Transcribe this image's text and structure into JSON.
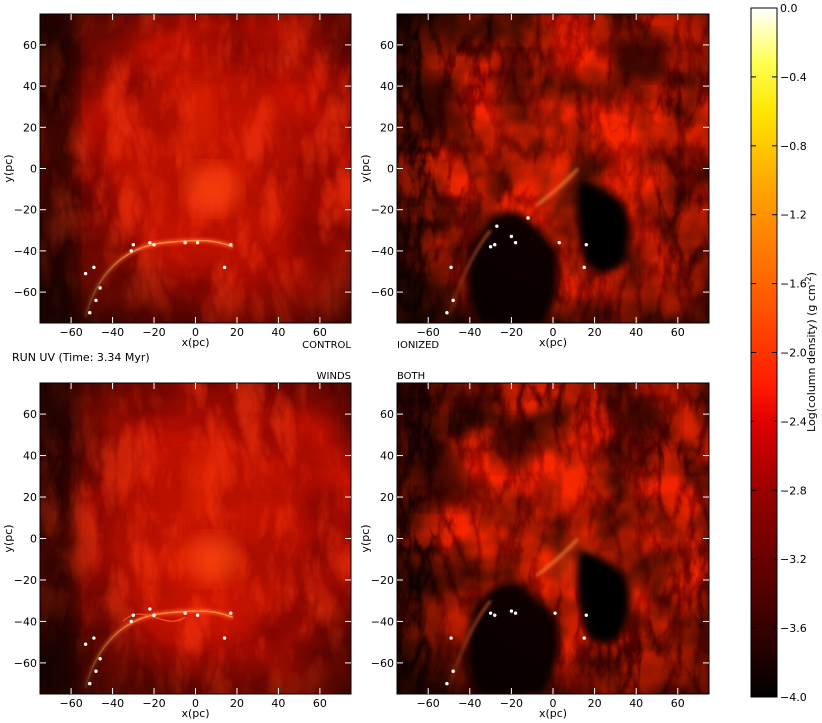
{
  "figure": {
    "run_label": "RUN UV (Time: 3.34 Myr)"
  },
  "chart_data": [
    {
      "type": "heatmap",
      "panel": "top-left",
      "label": "CONTROL",
      "xlabel": "x(pc)",
      "ylabel": "y(pc)",
      "xlim": [
        -75,
        75
      ],
      "ylim": [
        -75,
        75
      ],
      "xticks": [
        -60,
        -40,
        -20,
        0,
        20,
        40,
        60
      ],
      "yticks": [
        -60,
        -40,
        -20,
        0,
        20,
        40,
        60
      ],
      "structure": "smooth",
      "stars": [
        [
          -51,
          -70
        ],
        [
          -48,
          -64
        ],
        [
          -46,
          -58
        ],
        [
          -53,
          -51
        ],
        [
          -49,
          -48
        ],
        [
          -31,
          -40
        ],
        [
          -30,
          -37
        ],
        [
          -22,
          -36
        ],
        [
          -20,
          -37
        ],
        [
          -5,
          -36
        ],
        [
          1,
          -36
        ],
        [
          17,
          -37
        ],
        [
          14,
          -48
        ]
      ]
    },
    {
      "type": "heatmap",
      "panel": "top-right",
      "label": "IONIZED",
      "xlabel": "x(pc)",
      "ylabel": "y(pc)",
      "xlim": [
        -75,
        75
      ],
      "ylim": [
        -75,
        75
      ],
      "xticks": [
        -60,
        -40,
        -20,
        0,
        20,
        40,
        60
      ],
      "yticks": [
        -60,
        -40,
        -20,
        0,
        20,
        40,
        60
      ],
      "structure": "ionized",
      "stars": [
        [
          -51,
          -70
        ],
        [
          -48,
          -64
        ],
        [
          -49,
          -48
        ],
        [
          -30,
          -38
        ],
        [
          -28,
          -37
        ],
        [
          -27,
          -28
        ],
        [
          -20,
          -33
        ],
        [
          -18,
          -36
        ],
        [
          -12,
          -24
        ],
        [
          3,
          -36
        ],
        [
          16,
          -37
        ],
        [
          15,
          -48
        ]
      ]
    },
    {
      "type": "heatmap",
      "panel": "bottom-left",
      "label": "WINDS",
      "xlabel": "x(pc)",
      "ylabel": "y(pc)",
      "xlim": [
        -75,
        75
      ],
      "ylim": [
        -75,
        75
      ],
      "xticks": [
        -60,
        -40,
        -20,
        0,
        20,
        40,
        60
      ],
      "yticks": [
        -60,
        -40,
        -20,
        0,
        20,
        40,
        60
      ],
      "structure": "winds",
      "stars": [
        [
          -51,
          -70
        ],
        [
          -48,
          -64
        ],
        [
          -46,
          -58
        ],
        [
          -53,
          -51
        ],
        [
          -49,
          -48
        ],
        [
          -31,
          -40
        ],
        [
          -30,
          -37
        ],
        [
          -22,
          -34
        ],
        [
          -20,
          -37
        ],
        [
          -5,
          -36
        ],
        [
          1,
          -37
        ],
        [
          17,
          -36
        ],
        [
          14,
          -48
        ]
      ]
    },
    {
      "type": "heatmap",
      "panel": "bottom-right",
      "label": "BOTH",
      "xlabel": "x(pc)",
      "ylabel": "y(pc)",
      "xlim": [
        -75,
        75
      ],
      "ylim": [
        -75,
        75
      ],
      "xticks": [
        -60,
        -40,
        -20,
        0,
        20,
        40,
        60
      ],
      "yticks": [
        -60,
        -40,
        -20,
        0,
        20,
        40,
        60
      ],
      "structure": "ionized",
      "stars": [
        [
          -51,
          -70
        ],
        [
          -48,
          -64
        ],
        [
          -49,
          -48
        ],
        [
          -30,
          -36
        ],
        [
          -28,
          -37
        ],
        [
          -20,
          -35
        ],
        [
          -18,
          -36
        ],
        [
          1,
          -36
        ],
        [
          16,
          -37
        ],
        [
          15,
          -48
        ]
      ]
    }
  ],
  "colorbar": {
    "label": "Log(column density) (g cm",
    "label_exp": "-2",
    "label_end": ")",
    "colormap": "hot",
    "range": [
      -4.0,
      0.0
    ],
    "ticks": [
      "0.0",
      "−0.4",
      "−0.8",
      "−1.2",
      "−1.6",
      "−2.0",
      "−2.4",
      "−2.8",
      "−3.2",
      "−3.6",
      "−4.0"
    ],
    "colors": [
      "#000000",
      "#5a0000",
      "#b40000",
      "#ff1400",
      "#ff6e00",
      "#ffc800",
      "#ffff3c",
      "#ffffff"
    ]
  }
}
